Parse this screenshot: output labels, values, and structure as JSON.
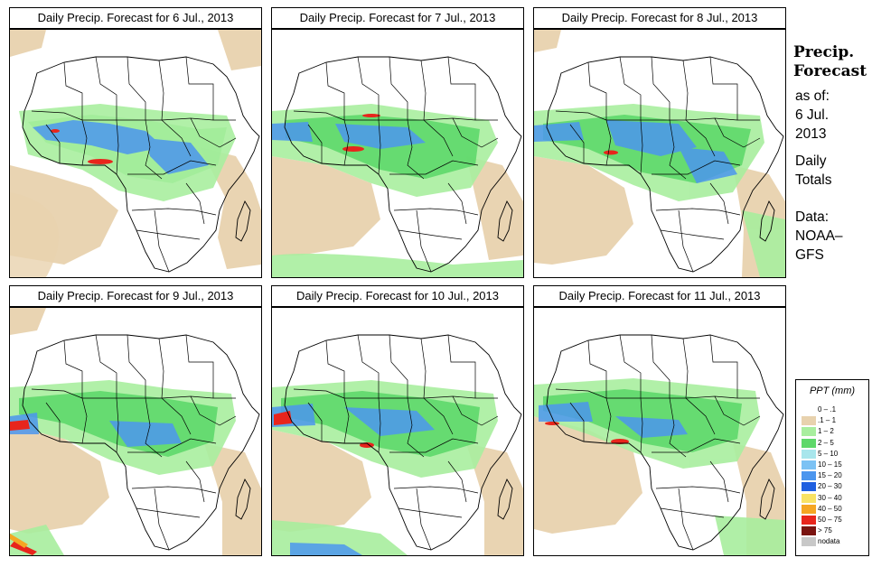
{
  "panels": [
    {
      "title": "Daily Precip. Forecast for  6 Jul., 2013"
    },
    {
      "title": "Daily Precip. Forecast for  7 Jul., 2013"
    },
    {
      "title": "Daily Precip. Forecast for  8 Jul., 2013"
    },
    {
      "title": "Daily Precip. Forecast for  9 Jul., 2013"
    },
    {
      "title": "Daily Precip. Forecast for  10 Jul., 2013"
    },
    {
      "title": "Daily Precip. Forecast for  11 Jul., 2013"
    }
  ],
  "sidebar": {
    "heading_line1": "Precip.",
    "heading_line2": "Forecast",
    "asof_line1": "as of:",
    "asof_line2": "6 Jul.",
    "asof_line3": "2013",
    "totals_line1": "Daily",
    "totals_line2": "Totals",
    "data_line1": "Data:",
    "data_line2": "NOAA–",
    "data_line3": "GFS"
  },
  "legend": {
    "title": "PPT (mm)",
    "items": [
      {
        "label": "0 – .1",
        "color": "#ffffff"
      },
      {
        "label": ".1 – 1",
        "color": "#e8d2ae"
      },
      {
        "label": "1 – 2",
        "color": "#a8ee9e"
      },
      {
        "label": "2 – 5",
        "color": "#5ed86a"
      },
      {
        "label": "5 – 10",
        "color": "#a8e6ec"
      },
      {
        "label": "10 – 15",
        "color": "#7cc2f4"
      },
      {
        "label": "15 – 20",
        "color": "#4c96ee"
      },
      {
        "label": "20 – 30",
        "color": "#1f5fe0"
      },
      {
        "label": "30 – 40",
        "color": "#f8e264"
      },
      {
        "label": "40 – 50",
        "color": "#f5a623"
      },
      {
        "label": "50 – 75",
        "color": "#e8251c"
      },
      {
        "label": "> 75",
        "color": "#7a1410"
      },
      {
        "label": "nodata",
        "color": "#c8c8c8"
      }
    ]
  }
}
